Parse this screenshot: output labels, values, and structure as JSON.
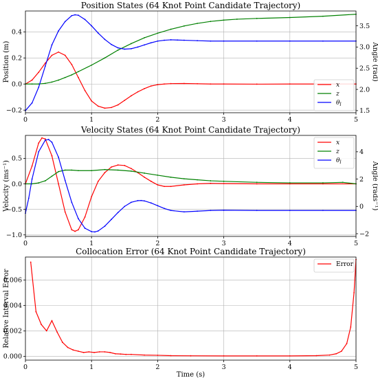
{
  "chart_data": [
    {
      "type": "line",
      "title": "Position States (64 Knot Point Candidate Trajectory)",
      "xlabel": "",
      "ylabel": "Position (m)",
      "ylabel_right": "Angle (rad)",
      "xlim": [
        0,
        5
      ],
      "ylim": [
        -0.22,
        0.56
      ],
      "ylim_right": [
        1.45,
        3.85
      ],
      "x_ticks": [
        "0",
        "1",
        "2",
        "3",
        "4",
        "5"
      ],
      "y_ticks": [
        {
          "value": -0.2,
          "label": "−0.2"
        },
        {
          "value": 0.0,
          "label": "0.0"
        },
        {
          "value": 0.2,
          "label": "0.2"
        },
        {
          "value": 0.4,
          "label": "0.4"
        }
      ],
      "y_ticks_right": [
        {
          "value": 1.5,
          "label": "1.5"
        },
        {
          "value": 2.0,
          "label": "2.0"
        },
        {
          "value": 2.5,
          "label": "2.5"
        },
        {
          "value": 3.0,
          "label": "3.0"
        },
        {
          "value": 3.5,
          "label": "3.5"
        }
      ],
      "grid": true,
      "legend_position": "bottom-right",
      "series": [
        {
          "name": "x",
          "axis": "left",
          "color": "#ff0000",
          "x": [
            0,
            0.1,
            0.2,
            0.3,
            0.4,
            0.5,
            0.6,
            0.7,
            0.8,
            0.9,
            1.0,
            1.1,
            1.2,
            1.3,
            1.4,
            1.5,
            1.6,
            1.7,
            1.8,
            1.9,
            2.0,
            2.1,
            2.2,
            2.4,
            2.6,
            2.8,
            3.0,
            3.5,
            4.0,
            4.5,
            5.0
          ],
          "y": [
            0.0,
            0.03,
            0.09,
            0.16,
            0.22,
            0.245,
            0.22,
            0.15,
            0.05,
            -0.05,
            -0.13,
            -0.17,
            -0.185,
            -0.18,
            -0.16,
            -0.125,
            -0.09,
            -0.06,
            -0.035,
            -0.015,
            -0.005,
            0.0,
            0.003,
            0.004,
            0.002,
            0.0,
            0.0,
            -0.001,
            0.0,
            0.0,
            0.0
          ]
        },
        {
          "name": "z",
          "axis": "left",
          "color": "#008000",
          "x": [
            0,
            0.1,
            0.2,
            0.3,
            0.4,
            0.5,
            0.6,
            0.7,
            0.8,
            1.0,
            1.2,
            1.4,
            1.6,
            1.8,
            2.0,
            2.2,
            2.4,
            2.6,
            2.8,
            3.0,
            3.2,
            3.5,
            4.0,
            4.5,
            5.0
          ],
          "y": [
            0.0,
            0.0,
            0.0,
            0.005,
            0.015,
            0.03,
            0.05,
            0.07,
            0.095,
            0.145,
            0.2,
            0.26,
            0.31,
            0.355,
            0.39,
            0.42,
            0.445,
            0.465,
            0.48,
            0.49,
            0.497,
            0.503,
            0.51,
            0.52,
            0.535
          ]
        },
        {
          "name": "θl",
          "axis": "right",
          "color": "#0000ff",
          "x": [
            0,
            0.1,
            0.2,
            0.3,
            0.4,
            0.5,
            0.6,
            0.7,
            0.75,
            0.8,
            0.9,
            1.0,
            1.1,
            1.2,
            1.3,
            1.4,
            1.5,
            1.6,
            1.7,
            1.8,
            1.9,
            2.0,
            2.1,
            2.2,
            2.3,
            2.4,
            2.6,
            2.8,
            3.0,
            3.5,
            4.0,
            4.5,
            5.0
          ],
          "y": [
            1.5,
            1.68,
            2.05,
            2.55,
            3.05,
            3.38,
            3.6,
            3.74,
            3.76,
            3.75,
            3.65,
            3.5,
            3.33,
            3.18,
            3.06,
            2.98,
            2.95,
            2.96,
            3.0,
            3.05,
            3.1,
            3.14,
            3.16,
            3.17,
            3.165,
            3.16,
            3.15,
            3.14,
            3.14,
            3.14,
            3.14,
            3.14,
            3.14
          ]
        }
      ]
    },
    {
      "type": "line",
      "title": "Velocity States (64 Knot Point Candidate Trajectory)",
      "xlabel": "",
      "ylabel": "Velocity (ms⁻¹)",
      "ylabel_right": "Angle (rads⁻¹)",
      "xlim": [
        0,
        5
      ],
      "ylim": [
        -1.03,
        0.95
      ],
      "ylim_right": [
        -2.2,
        5.2
      ],
      "x_ticks": [
        "0",
        "1",
        "2",
        "3",
        "4",
        "5"
      ],
      "y_ticks": [
        {
          "value": -1.0,
          "label": "−1.0"
        },
        {
          "value": -0.5,
          "label": "−0.5"
        },
        {
          "value": 0.0,
          "label": "0.0"
        },
        {
          "value": 0.5,
          "label": "0.5"
        }
      ],
      "y_ticks_right": [
        {
          "value": -2,
          "label": "−2"
        },
        {
          "value": 0,
          "label": "0"
        },
        {
          "value": 2,
          "label": "2"
        },
        {
          "value": 4,
          "label": "4"
        }
      ],
      "grid": true,
      "legend_position": "top-right",
      "series": [
        {
          "name": "x",
          "axis": "left",
          "color": "#ff0000",
          "x": [
            0,
            0.1,
            0.2,
            0.25,
            0.3,
            0.4,
            0.5,
            0.6,
            0.7,
            0.75,
            0.8,
            0.9,
            1.0,
            1.1,
            1.2,
            1.3,
            1.4,
            1.5,
            1.6,
            1.7,
            1.8,
            1.9,
            2.0,
            2.1,
            2.2,
            2.4,
            2.6,
            2.8,
            3.0,
            3.5,
            4.0,
            4.5,
            5.0
          ],
          "y": [
            0.0,
            0.35,
            0.8,
            0.9,
            0.88,
            0.55,
            0.0,
            -0.55,
            -0.9,
            -0.93,
            -0.9,
            -0.65,
            -0.25,
            0.05,
            0.22,
            0.33,
            0.37,
            0.36,
            0.3,
            0.22,
            0.13,
            0.05,
            -0.02,
            -0.05,
            -0.05,
            -0.02,
            0.0,
            0.01,
            0.005,
            0.0,
            0.0,
            0.0,
            0.0
          ]
        },
        {
          "name": "z",
          "axis": "left",
          "color": "#008000",
          "x": [
            0,
            0.1,
            0.2,
            0.3,
            0.4,
            0.5,
            0.6,
            0.7,
            0.8,
            1.0,
            1.2,
            1.4,
            1.6,
            1.8,
            2.0,
            2.2,
            2.4,
            2.6,
            2.8,
            3.0,
            3.5,
            4.0,
            4.5,
            4.8,
            5.0
          ],
          "y": [
            0.0,
            0.0,
            0.02,
            0.06,
            0.15,
            0.24,
            0.27,
            0.27,
            0.26,
            0.26,
            0.28,
            0.27,
            0.25,
            0.21,
            0.17,
            0.13,
            0.1,
            0.08,
            0.06,
            0.05,
            0.03,
            0.02,
            0.02,
            0.03,
            0.0
          ]
        },
        {
          "name": "θl",
          "axis": "right",
          "color": "#0000ff",
          "x": [
            0,
            0.05,
            0.1,
            0.2,
            0.3,
            0.35,
            0.4,
            0.5,
            0.6,
            0.7,
            0.8,
            0.9,
            1.0,
            1.05,
            1.1,
            1.2,
            1.3,
            1.4,
            1.5,
            1.6,
            1.7,
            1.75,
            1.8,
            1.9,
            2.0,
            2.1,
            2.2,
            2.4,
            2.6,
            2.8,
            3.0,
            3.5,
            4.0,
            4.5,
            5.0
          ],
          "y": [
            -0.5,
            0.6,
            2.0,
            4.0,
            4.85,
            4.9,
            4.7,
            3.6,
            1.9,
            0.3,
            -0.9,
            -1.6,
            -1.85,
            -1.87,
            -1.8,
            -1.45,
            -0.95,
            -0.45,
            0.0,
            0.3,
            0.42,
            0.43,
            0.4,
            0.25,
            0.05,
            -0.15,
            -0.3,
            -0.4,
            -0.35,
            -0.3,
            -0.28,
            -0.3,
            -0.3,
            -0.3,
            -0.3
          ]
        }
      ]
    },
    {
      "type": "line",
      "title": "Collocation Error (64 Knot Point Candidate Trajectory)",
      "xlabel": "Time (s)",
      "ylabel": "Relative Interval Error",
      "xlim": [
        0,
        5
      ],
      "ylim": [
        -0.0003,
        0.0078
      ],
      "x_ticks": [
        "0",
        "1",
        "2",
        "3",
        "4",
        "5"
      ],
      "y_ticks": [
        {
          "value": 0.0,
          "label": "0.000"
        },
        {
          "value": 0.002,
          "label": "0.002"
        },
        {
          "value": 0.004,
          "label": "0.004"
        },
        {
          "value": 0.006,
          "label": "0.006"
        }
      ],
      "grid": true,
      "legend_position": "top-right",
      "series": [
        {
          "name": "Error",
          "axis": "left",
          "color": "#ff0000",
          "x": [
            0.08,
            0.16,
            0.24,
            0.32,
            0.4,
            0.48,
            0.56,
            0.64,
            0.72,
            0.8,
            0.88,
            0.96,
            1.04,
            1.12,
            1.2,
            1.28,
            1.36,
            1.44,
            1.52,
            1.6,
            1.8,
            2.0,
            2.2,
            2.5,
            3.0,
            3.5,
            4.0,
            4.4,
            4.6,
            4.7,
            4.78,
            4.86,
            4.92,
            4.97,
            5.0
          ],
          "y": [
            0.0074,
            0.0035,
            0.0025,
            0.002,
            0.0028,
            0.0019,
            0.0011,
            0.0007,
            0.0005,
            0.0004,
            0.0003,
            0.00035,
            0.0003,
            0.00035,
            0.00035,
            0.0003,
            0.0002,
            0.00018,
            0.00015,
            0.00015,
            0.0001,
            8e-05,
            5e-05,
            4e-05,
            3e-05,
            3e-05,
            3e-05,
            5e-05,
            0.0001,
            0.0002,
            0.0004,
            0.001,
            0.0023,
            0.005,
            0.0076
          ]
        }
      ]
    }
  ]
}
